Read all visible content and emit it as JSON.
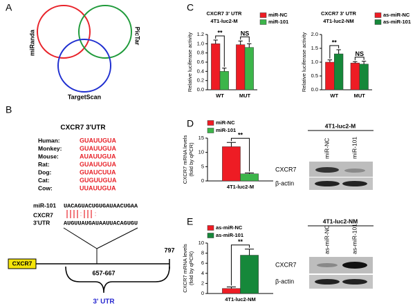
{
  "panel_labels": [
    "A",
    "B",
    "C",
    "D",
    "E"
  ],
  "venn": [
    "miRanda",
    "PicTar",
    "TargetScan"
  ],
  "alignment": {
    "title": "CXCR7 3'UTR",
    "species": [
      {
        "name": "Human:",
        "seq": "GUAUUGUA"
      },
      {
        "name": "Monkey:",
        "seq": "GUAUUGUA"
      },
      {
        "name": "Mouse:",
        "seq": "AUAUUGUA"
      },
      {
        "name": "Rat:",
        "seq": "GUAUUGUA"
      },
      {
        "name": "Dog:",
        "seq": "GUAUCUUA"
      },
      {
        "name": "Cat:",
        "seq": "GUGUUGUA"
      },
      {
        "name": "Cow:",
        "seq": "UUAUUGUA"
      }
    ],
    "mirna": {
      "name": "miR-101",
      "seq": "UACAGUACUGUGAUAACUGAA"
    },
    "target": {
      "name": [
        "CXCR7",
        "3'UTR"
      ],
      "seq": "AUGUUAUGAUAAUUACAGUGU"
    }
  },
  "gene": {
    "name": "CXCR7",
    "length": "797",
    "site": "657-667",
    "region": "3' UTR"
  },
  "blots": [
    {
      "title": "4T1-luc2-M",
      "lanes": [
        "miR-NC",
        "miR-101"
      ],
      "rows": [
        "CXCR7",
        "β-actin"
      ]
    },
    {
      "title": "4T1-luc2-NM",
      "lanes": [
        "as-miR-NC",
        "as-miR-101"
      ],
      "rows": [
        "CXCR7",
        "β-actin"
      ]
    }
  ],
  "chart_data": [
    {
      "type": "bar",
      "title": [
        "CXCR7 3' UTR",
        "4T1-luc2-M"
      ],
      "ylabel": "Relative luciferase activity",
      "categories": [
        "WT",
        "MUT"
      ],
      "series": [
        {
          "name": "miR-NC",
          "color": "#ee1c24",
          "values": [
            1.0,
            0.98
          ],
          "errors": [
            0.08,
            0.08
          ]
        },
        {
          "name": "miR-101",
          "color": "#3cb54a",
          "values": [
            0.4,
            0.92
          ],
          "errors": [
            0.07,
            0.08
          ]
        }
      ],
      "ylim": [
        0,
        1.2
      ],
      "yticks": [
        {
          "value": 0,
          "label": "0.0"
        },
        0.2,
        0.4,
        0.6,
        0.8,
        {
          "value": 1,
          "label": "1.0"
        },
        1.2
      ],
      "annotations": [
        "**",
        "NS"
      ],
      "legend": "top-right"
    },
    {
      "type": "bar",
      "title": [
        "CXCR7 3' UTR",
        "4T1-luc2-NM"
      ],
      "ylabel": "Relative luciferase activity",
      "categories": [
        "WT",
        "MUT"
      ],
      "series": [
        {
          "name": "as-miR-NC",
          "color": "#ee1c24",
          "values": [
            1.0,
            0.97
          ],
          "errors": [
            0.08,
            0.05
          ]
        },
        {
          "name": "as-miR-101",
          "color": "#16883a",
          "values": [
            1.3,
            0.93
          ],
          "errors": [
            0.15,
            0.1
          ]
        }
      ],
      "ylim": [
        0,
        2
      ],
      "yticks": [
        {
          "value": 0,
          "label": "0.0"
        },
        0.5,
        {
          "value": 1,
          "label": "1.0"
        },
        1.5,
        {
          "value": 2,
          "label": "2.0"
        }
      ],
      "annotations": [
        "**",
        "NS"
      ],
      "legend": "top-right"
    },
    {
      "type": "bar",
      "ylabel": [
        "CXCR7 mRNA levels",
        "(fold by qPCR)"
      ],
      "categories": [
        "4T1-luc2-M"
      ],
      "series": [
        {
          "name": "miR-NC",
          "color": "#ee1c24",
          "values": [
            12
          ],
          "errors": [
            1.5
          ]
        },
        {
          "name": "miR-101",
          "color": "#3cb54a",
          "values": [
            2.5
          ],
          "errors": [
            0.3
          ]
        }
      ],
      "ylim": [
        0,
        15
      ],
      "yticks": [
        0,
        5,
        10,
        15
      ],
      "annotations": [
        "**"
      ],
      "legend": "top-left"
    },
    {
      "type": "bar",
      "ylabel": [
        "CXCR7 mRNA levels",
        "(fold by qPCR)"
      ],
      "categories": [
        "4T1-luc2-NM"
      ],
      "series": [
        {
          "name": "as-miR-NC",
          "color": "#ee1c24",
          "values": [
            1.0
          ],
          "errors": [
            0.3
          ]
        },
        {
          "name": "as-miR-101",
          "color": "#16883a",
          "values": [
            7.6
          ],
          "errors": [
            1.2
          ]
        }
      ],
      "ylim": [
        0,
        10
      ],
      "yticks": [
        0,
        2,
        4,
        6,
        8,
        10
      ],
      "annotations": [
        "**"
      ],
      "legend": "top-left"
    }
  ]
}
